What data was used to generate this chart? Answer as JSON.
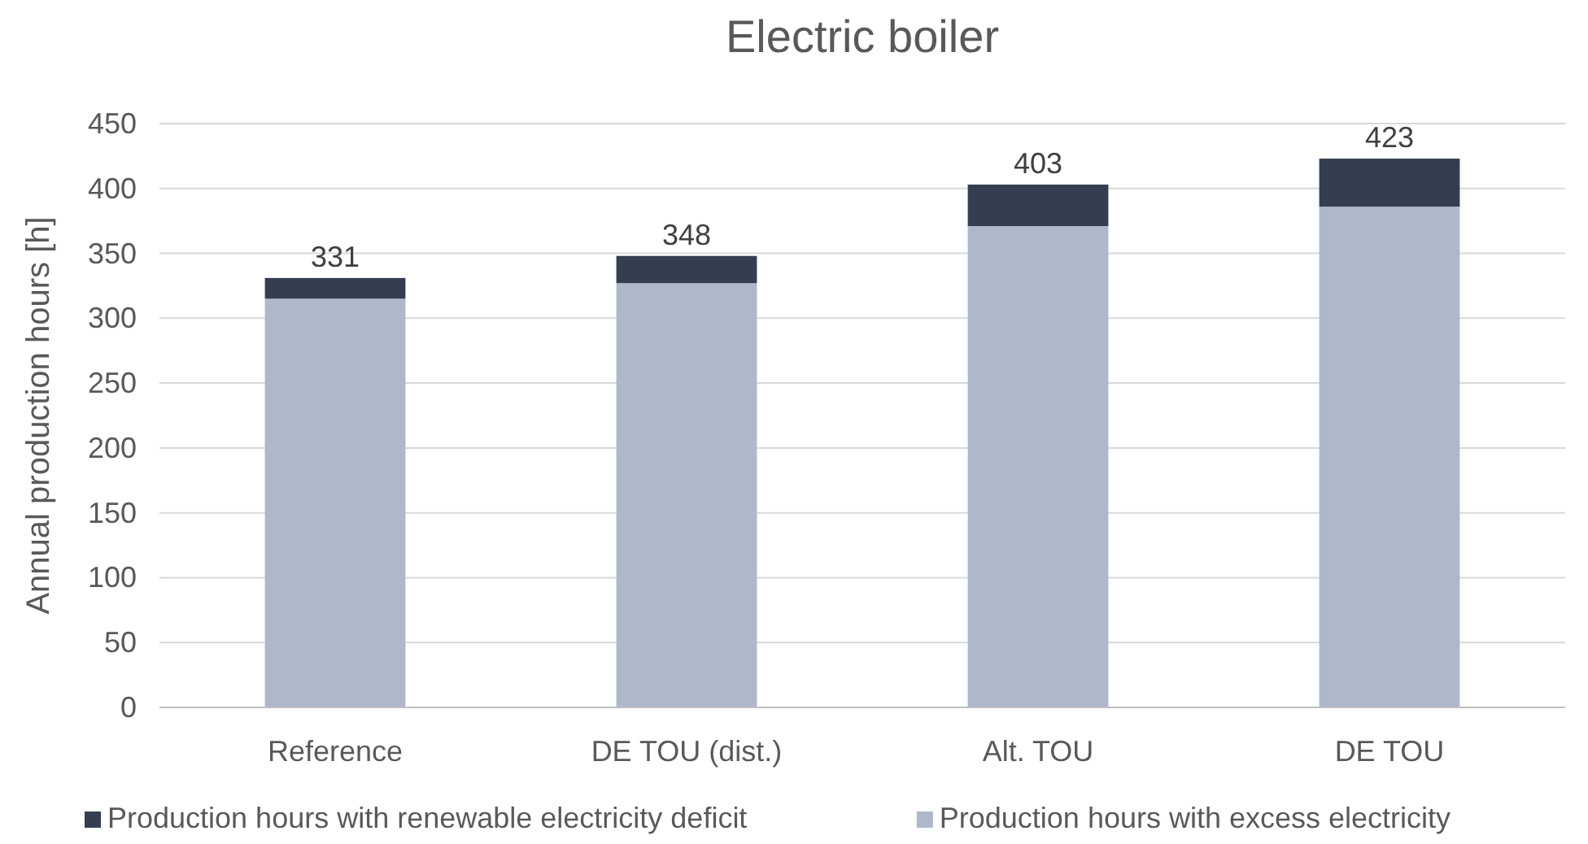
{
  "chart_data": {
    "type": "bar",
    "title": "Electric boiler",
    "ylabel": "Annual production hours [h]",
    "categories": [
      "Reference",
      "DE TOU (dist.)",
      "Alt. TOU",
      "DE TOU"
    ],
    "series": [
      {
        "name": "Production hours with excess electricity",
        "color": "#adb9ca",
        "values": [
          315,
          327,
          371,
          386
        ]
      },
      {
        "name": "Production hours with renewable electricity deficit",
        "color": "#333f50",
        "values": [
          16,
          21,
          32,
          37
        ]
      }
    ],
    "stacked": true,
    "totals": [
      "331",
      "348",
      "403",
      "423"
    ],
    "ylim": [
      0,
      450
    ],
    "yticks": [
      0,
      50,
      100,
      150,
      200,
      250,
      300,
      350,
      400,
      450
    ],
    "grid": "y",
    "legend": "bottom"
  }
}
